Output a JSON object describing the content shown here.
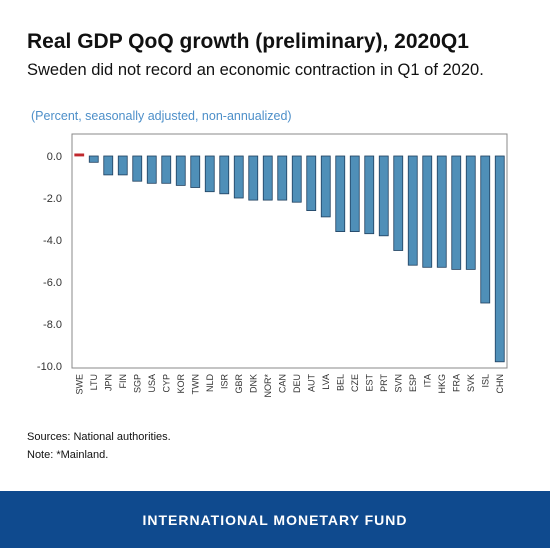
{
  "header": {
    "title": "Real GDP QoQ growth (preliminary), 2020Q1",
    "subtitle": "Sweden did not record an economic contraction in Q1 of 2020."
  },
  "chart_data": {
    "type": "bar",
    "units_label": "(Percent, seasonally adjusted, non-annualized)",
    "categories": [
      "SWE",
      "LTU",
      "JPN",
      "FIN",
      "SGP",
      "USA",
      "CYP",
      "KOR",
      "TWN",
      "NLD",
      "ISR",
      "GBR",
      "DNK",
      "NOR*",
      "CAN",
      "DEU",
      "AUT",
      "LVA",
      "BEL",
      "CZE",
      "EST",
      "PRT",
      "SVN",
      "ESP",
      "ITA",
      "HKG",
      "FRA",
      "SVK",
      "ISL",
      "CHN"
    ],
    "values": [
      0.1,
      -0.3,
      -0.9,
      -0.9,
      -1.2,
      -1.3,
      -1.3,
      -1.4,
      -1.5,
      -1.7,
      -1.8,
      -2.0,
      -2.1,
      -2.1,
      -2.1,
      -2.2,
      -2.6,
      -2.9,
      -3.6,
      -3.6,
      -3.7,
      -3.8,
      -4.5,
      -5.2,
      -5.3,
      -5.3,
      -5.4,
      -5.4,
      -7.0,
      -9.8
    ],
    "ylim": [
      -10,
      0.6
    ],
    "yticks": [
      0,
      -2,
      -4,
      -6,
      -8,
      -10
    ],
    "ytick_labels": [
      "0.0",
      "-2.0",
      "-4.0",
      "-6.0",
      "-8.0",
      "-10.0"
    ],
    "grid": false,
    "colors": {
      "bar": "#4f8fb8",
      "bar_edge": "#1f3f5e",
      "highlight": "#c0282e",
      "axis": "#888888"
    }
  },
  "notes": {
    "sources": "Sources: National authorities.",
    "note": "Note: *Mainland."
  },
  "footer": {
    "org": "INTERNATIONAL MONETARY FUND"
  }
}
